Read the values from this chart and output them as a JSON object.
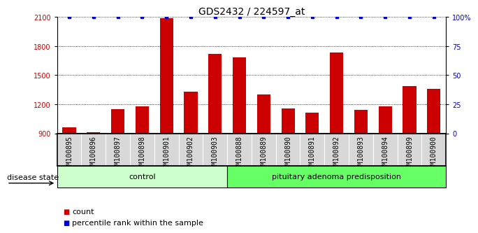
{
  "title": "GDS2432 / 224597_at",
  "samples": [
    "GSM100895",
    "GSM100896",
    "GSM100897",
    "GSM100898",
    "GSM100901",
    "GSM100902",
    "GSM100903",
    "GSM100888",
    "GSM100889",
    "GSM100890",
    "GSM100891",
    "GSM100892",
    "GSM100893",
    "GSM100894",
    "GSM100899",
    "GSM100900"
  ],
  "counts": [
    960,
    910,
    1150,
    1180,
    2090,
    1330,
    1720,
    1680,
    1300,
    1160,
    1110,
    1730,
    1145,
    1175,
    1390,
    1360
  ],
  "ylim_left": [
    900,
    2100
  ],
  "ylim_right": [
    0,
    100
  ],
  "yticks_left": [
    900,
    1200,
    1500,
    1800,
    2100
  ],
  "yticks_right": [
    0,
    25,
    50,
    75,
    100
  ],
  "bar_color": "#cc0000",
  "dot_color": "#0000cc",
  "control_samples": 7,
  "control_label": "control",
  "disease_label": "pituitary adenoma predisposition",
  "disease_state_label": "disease state",
  "legend_count": "count",
  "legend_percentile": "percentile rank within the sample",
  "control_color": "#ccffcc",
  "disease_color": "#66ff66",
  "plot_bg": "#ffffff",
  "xtick_bg": "#d8d8d8",
  "title_fontsize": 10,
  "tick_fontsize": 7,
  "label_fontsize": 8,
  "group_fontsize": 8
}
